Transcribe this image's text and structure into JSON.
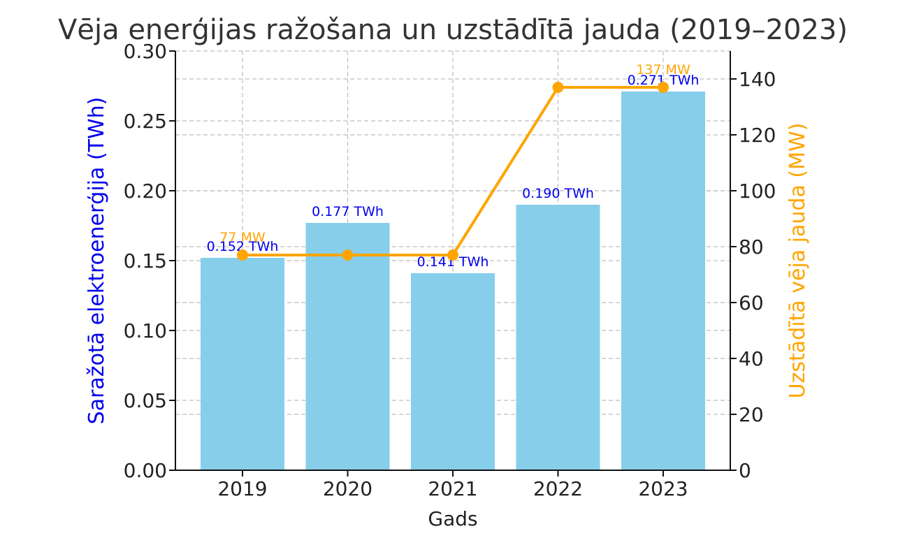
{
  "chart_data": {
    "type": "bar",
    "title": "Vēja enerģijas ražošana un uzstādītā jauda (2019–2023)",
    "xlabel": "Gads",
    "ylabel": "Saražotā elektroenerģija (TWh)",
    "y2label": "Uzstādītā vēja jauda (MW)",
    "categories": [
      "2019",
      "2020",
      "2021",
      "2022",
      "2023"
    ],
    "ylim": [
      0,
      0.3
    ],
    "y2lim": [
      0,
      150
    ],
    "yticks": [
      "0.00",
      "0.05",
      "0.10",
      "0.15",
      "0.20",
      "0.25",
      "0.30"
    ],
    "y2ticks": [
      "0",
      "20",
      "40",
      "60",
      "80",
      "100",
      "120",
      "140"
    ],
    "grid": true,
    "series": [
      {
        "name": "Saražotā elektroenerģija (TWh)",
        "type": "bar",
        "axis": "left",
        "color": "#87ceeb",
        "label_color": "#0000ee",
        "values": [
          0.152,
          0.177,
          0.141,
          0.19,
          0.271
        ],
        "labels": [
          "0.152 TWh",
          "0.177 TWh",
          "0.141 TWh",
          "0.190 TWh",
          "0.271 TWh"
        ]
      },
      {
        "name": "Uzstādītā vēja jauda (MW)",
        "type": "line",
        "axis": "right",
        "color": "#ffa500",
        "values": [
          77,
          77,
          77,
          137,
          137
        ],
        "labels": [
          "77 MW",
          "137 MW"
        ],
        "label_indices": [
          0,
          4
        ]
      }
    ]
  }
}
